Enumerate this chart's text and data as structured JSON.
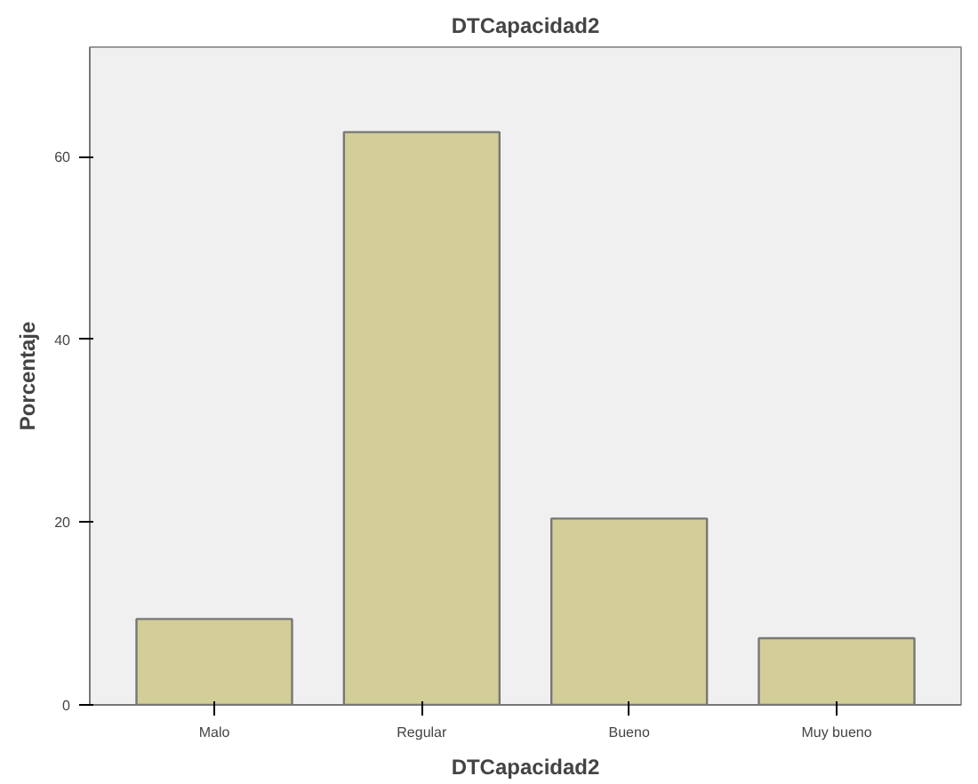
{
  "chart_data": {
    "type": "bar",
    "title": "DTCapacidad2",
    "xlabel": "DTCapacidad2",
    "ylabel": "Porcentaje",
    "categories": [
      "Malo",
      "Regular",
      "Bueno",
      "Muy bueno"
    ],
    "values": [
      9.4,
      62.7,
      20.4,
      7.3
    ],
    "color": "#d3ce97",
    "ylim": [
      0,
      72
    ],
    "yticks": [
      0,
      20,
      40,
      60
    ],
    "grid": false
  }
}
